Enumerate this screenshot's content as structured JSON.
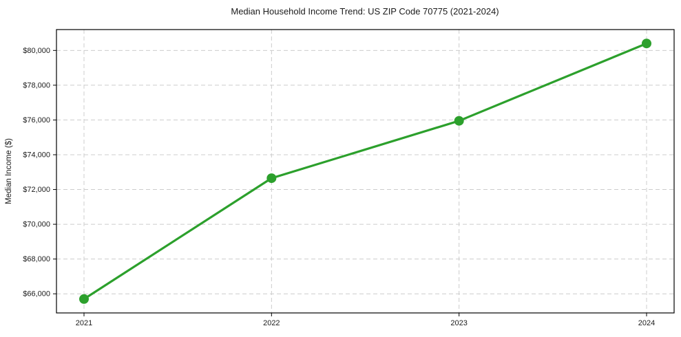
{
  "chart_data": {
    "type": "line",
    "title": "Median Household Income Trend: US ZIP Code 70775 (2021-2024)",
    "xlabel": "",
    "ylabel": "Median Income ($)",
    "categories": [
      "2021",
      "2022",
      "2023",
      "2024"
    ],
    "series": [
      {
        "name": "Median Household Income",
        "values": [
          65700,
          72650,
          75950,
          80400
        ],
        "color": "#2ca02c",
        "marker": "circle"
      }
    ],
    "ylim": [
      64900,
      81200
    ],
    "yticks": [
      66000,
      68000,
      70000,
      72000,
      74000,
      76000,
      78000,
      80000
    ],
    "ytick_labels": [
      "$66,000",
      "$68,000",
      "$70,000",
      "$72,000",
      "$74,000",
      "$76,000",
      "$78,000",
      "$80,000"
    ],
    "grid": "dashed",
    "grid_color": "#cccccc",
    "axis_color": "#000000",
    "legend": "none"
  }
}
